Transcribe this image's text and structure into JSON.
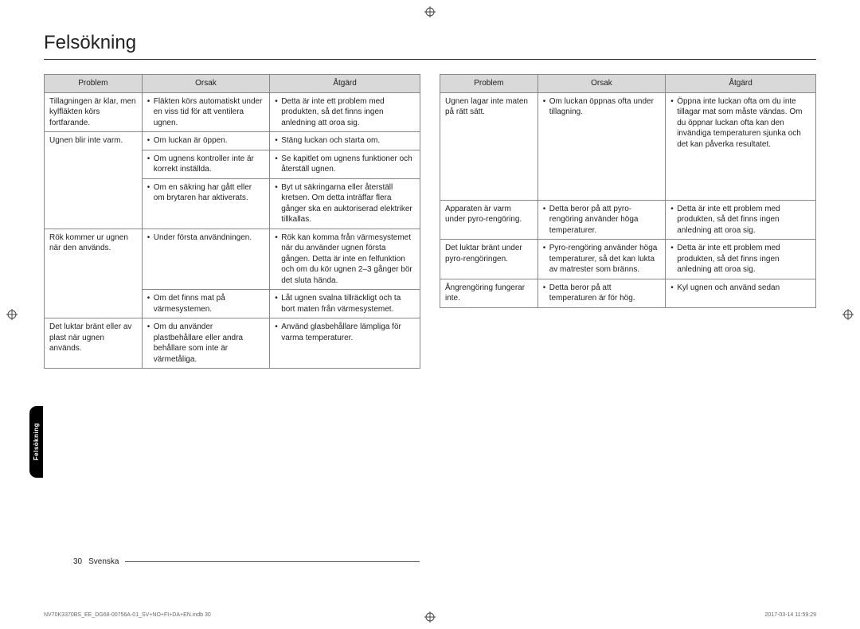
{
  "title": "Felsökning",
  "side_tab": "Felsökning",
  "headers": {
    "problem": "Problem",
    "cause": "Orsak",
    "action": "Åtgärd"
  },
  "footer": {
    "page": "30",
    "lang": "Svenska"
  },
  "tiny_footer": {
    "left": "NV70K3370BS_EE_DG68-00756A-01_SV+NO+FI+DA+EN.indb   30",
    "right": "2017-03-14   11:59:29"
  },
  "left_table": [
    {
      "problem": "Tillagningen är klar, men kylfläkten körs fortfarande.",
      "rows": [
        {
          "cause": "Fläkten körs automatiskt under en viss tid för att ventilera ugnen.",
          "action": "Detta är inte ett problem med produkten, så det finns ingen anledning att oroa sig."
        }
      ]
    },
    {
      "problem": "Ugnen blir inte varm.",
      "rows": [
        {
          "cause": "Om luckan är öppen.",
          "action": "Stäng luckan och starta om."
        },
        {
          "cause": "Om ugnens kontroller inte är korrekt inställda.",
          "action": "Se kapitlet om ugnens funktioner och återställ ugnen."
        },
        {
          "cause": "Om en säkring har gått eller om brytaren har aktiverats.",
          "action": "Byt ut säkringarna eller återställ kretsen. Om detta inträffar flera gånger ska en auktoriserad elektriker tillkallas."
        }
      ]
    },
    {
      "problem": "Rök kommer ur ugnen när den används.",
      "rows": [
        {
          "cause": "Under första användningen.",
          "action": "Rök kan komma från värmesystemet när du använder ugnen första gången. Detta är inte en felfunktion och om du kör ugnen 2–3 gånger bör det sluta hända."
        },
        {
          "cause": "Om det finns mat på värmesystemen.",
          "action": "Låt ugnen svalna tillräckligt och ta bort maten från värmesystemet."
        }
      ]
    },
    {
      "problem": "Det luktar bränt eller av plast när ugnen används.",
      "rows": [
        {
          "cause": "Om du använder plastbehållare eller andra behållare som inte är värmetåliga.",
          "action": "Använd glasbehållare lämpliga för varma temperaturer."
        }
      ]
    }
  ],
  "right_table": [
    {
      "problem": "Ugnen lagar inte maten på rätt sätt.",
      "rows": [
        {
          "cause": "Om luckan öppnas ofta under tillagning.",
          "action": "Öppna inte luckan ofta om du inte tillagar mat som måste vändas. Om du öppnar luckan ofta kan den invändiga temperaturen sjunka och det kan påverka resultatet."
        }
      ],
      "tall": true
    },
    {
      "problem": "Apparaten är varm under pyro-rengöring.",
      "rows": [
        {
          "cause": "Detta beror på att pyro-rengöring använder höga temperaturer.",
          "action": "Detta är inte ett problem med produkten, så det finns ingen anledning att oroa sig."
        }
      ]
    },
    {
      "problem": "Det luktar bränt under pyro-rengöringen.",
      "rows": [
        {
          "cause": "Pyro-rengöring använder höga temperaturer, så det kan lukta av matrester som bränns.",
          "action": "Detta är inte ett problem med produkten, så det finns ingen anledning att oroa sig."
        }
      ]
    },
    {
      "problem": "Ångrengöring fungerar inte.",
      "rows": [
        {
          "cause": "Detta beror på att temperaturen är för hög.",
          "action": "Kyl ugnen och använd sedan"
        }
      ]
    }
  ]
}
